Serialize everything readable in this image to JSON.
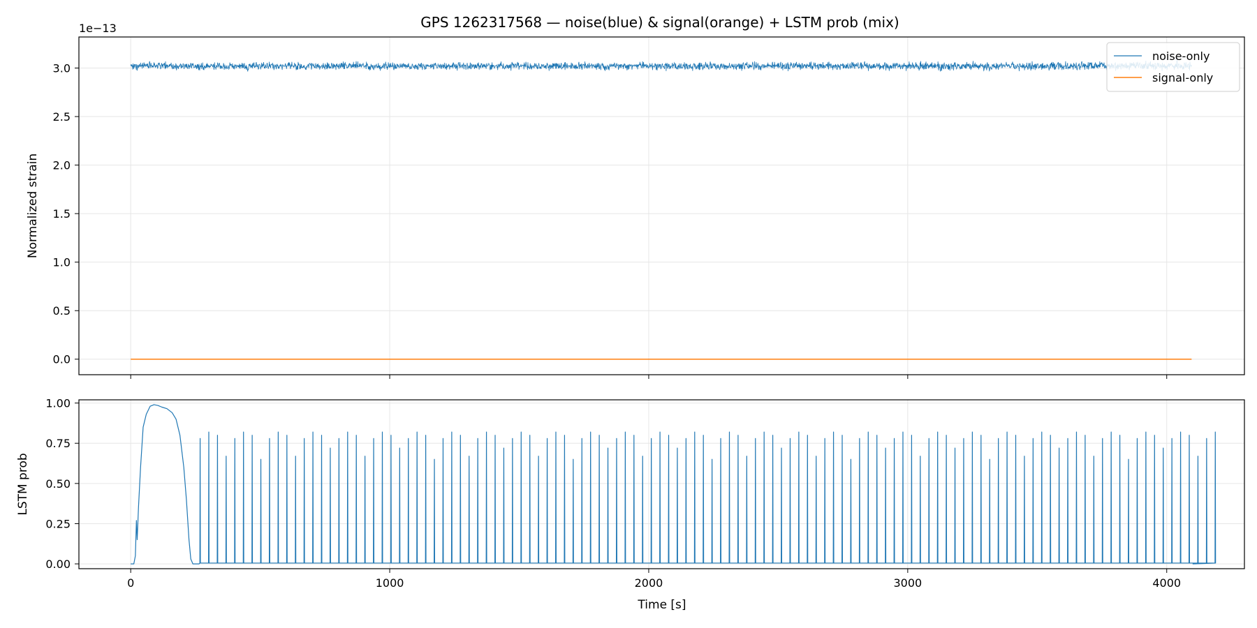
{
  "chart_data": [
    {
      "type": "line",
      "title": "GPS 1262317568 — noise(blue) & signal(orange) + LSTM prob (mix)",
      "ylabel": "Normalized strain",
      "y_offset_text": "1e−13",
      "xlim": [
        -200,
        4300
      ],
      "ylim": [
        -0.16,
        3.32
      ],
      "yticks": [
        0.0,
        0.5,
        1.0,
        1.5,
        2.0,
        2.5,
        3.0
      ],
      "ytick_labels": [
        "0.0",
        "0.5",
        "1.0",
        "1.5",
        "2.0",
        "2.5",
        "3.0"
      ],
      "xticks": [
        0,
        1000,
        2000,
        3000,
        4000
      ],
      "grid": true,
      "legend_position": "top-right",
      "series": [
        {
          "name": "noise-only",
          "color": "#1f77b4",
          "x_range": [
            0,
            4096
          ],
          "mean": 3.02,
          "amplitude": 0.06
        },
        {
          "name": "signal-only",
          "color": "#ff7f0e",
          "x": [
            0,
            4096
          ],
          "y": [
            0.0,
            0.0
          ]
        }
      ]
    },
    {
      "type": "line",
      "xlabel": "Time [s]",
      "ylabel": "LSTM prob",
      "xlim": [
        -200,
        4300
      ],
      "ylim": [
        -0.03,
        1.02
      ],
      "yticks": [
        0.0,
        0.25,
        0.5,
        0.75,
        1.0
      ],
      "ytick_labels": [
        "0.00",
        "0.25",
        "0.50",
        "0.75",
        "1.00"
      ],
      "xticks": [
        0,
        1000,
        2000,
        3000,
        4000
      ],
      "xtick_labels": [
        "0",
        "1000",
        "2000",
        "3000",
        "4000"
      ],
      "grid": true,
      "series": [
        {
          "color": "#1f77b4",
          "curve_x": [
            0,
            12,
            18,
            22,
            25,
            30,
            38,
            48,
            60,
            75,
            90,
            105,
            120,
            140,
            160,
            175,
            190,
            205,
            215,
            225,
            232,
            240,
            4100
          ],
          "curve_y": [
            0.0,
            0.0,
            0.05,
            0.27,
            0.15,
            0.35,
            0.6,
            0.85,
            0.93,
            0.98,
            0.99,
            0.985,
            0.975,
            0.965,
            0.94,
            0.9,
            0.8,
            0.6,
            0.4,
            0.15,
            0.03,
            0.0,
            0.0
          ],
          "spike_start": 268,
          "spike_spacing": 33.5,
          "spike_heights": [
            0.78,
            0.82,
            0.8,
            0.67,
            0.78,
            0.82,
            0.8,
            0.65,
            0.78,
            0.82,
            0.8,
            0.67,
            0.78,
            0.82,
            0.8,
            0.72,
            0.78,
            0.82,
            0.8,
            0.67,
            0.78,
            0.82,
            0.8,
            0.72,
            0.78,
            0.82,
            0.8,
            0.65,
            0.78,
            0.82,
            0.8,
            0.67,
            0.78,
            0.82,
            0.8,
            0.72,
            0.78,
            0.82,
            0.8,
            0.67,
            0.78,
            0.82,
            0.8,
            0.65,
            0.78,
            0.82,
            0.8,
            0.72,
            0.78,
            0.82,
            0.8,
            0.67,
            0.78,
            0.82,
            0.8,
            0.72,
            0.78,
            0.82,
            0.8,
            0.65,
            0.78,
            0.82,
            0.8,
            0.67,
            0.78,
            0.82,
            0.8,
            0.72,
            0.78,
            0.82,
            0.8,
            0.67,
            0.78,
            0.82,
            0.8,
            0.65,
            0.78,
            0.82,
            0.8,
            0.72,
            0.78,
            0.82,
            0.8,
            0.67,
            0.78,
            0.82,
            0.8,
            0.72,
            0.78,
            0.82,
            0.8,
            0.65,
            0.78,
            0.82,
            0.8,
            0.67,
            0.78,
            0.82,
            0.8,
            0.72,
            0.78,
            0.82,
            0.8,
            0.67,
            0.78,
            0.82,
            0.8,
            0.65,
            0.78,
            0.82,
            0.8,
            0.72,
            0.78,
            0.82,
            0.8,
            0.67,
            0.78,
            0.82
          ]
        }
      ]
    }
  ]
}
